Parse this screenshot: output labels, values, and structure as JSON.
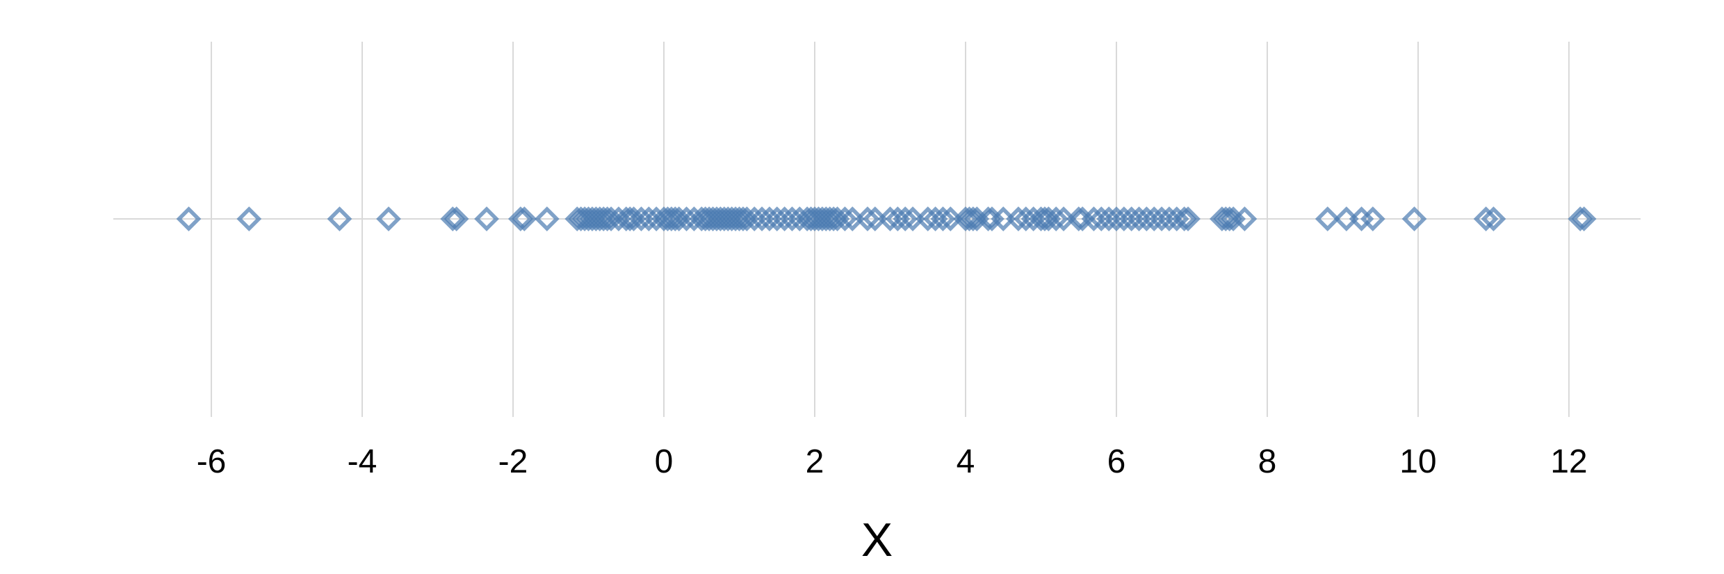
{
  "chart_data": {
    "type": "scatter",
    "title": "",
    "xlabel": "X",
    "ylabel": "",
    "xlim": [
      -7.3,
      12.95
    ],
    "xticks": [
      -6,
      -4,
      -2,
      0,
      2,
      4,
      6,
      8,
      10,
      12
    ],
    "xtick_labels": [
      "-6",
      "-4",
      "-2",
      "0",
      "2",
      "4",
      "6",
      "8",
      "10",
      "12"
    ],
    "grid": true,
    "legend": "none",
    "marker": "diamond-open",
    "point_color": "#4a7bb0",
    "series": [
      {
        "x": [
          -6.3,
          -5.5,
          -4.3,
          -3.65,
          -2.8,
          -2.75,
          -2.35,
          -1.9,
          -1.85,
          -1.55,
          -1.15,
          -1.1,
          -1.05,
          -1.0,
          -0.95,
          -0.9,
          -0.85,
          -0.8,
          -0.75,
          -0.7,
          -0.6,
          -0.5,
          -0.45,
          -0.4,
          -0.3,
          -0.2,
          -0.1,
          0.0,
          0.05,
          0.1,
          0.15,
          0.2,
          0.3,
          0.4,
          0.5,
          0.55,
          0.6,
          0.65,
          0.7,
          0.75,
          0.8,
          0.85,
          0.9,
          0.95,
          1.0,
          1.05,
          1.1,
          1.2,
          1.3,
          1.4,
          1.5,
          1.6,
          1.7,
          1.8,
          1.9,
          1.95,
          2.0,
          2.05,
          2.1,
          2.15,
          2.2,
          2.25,
          2.3,
          2.4,
          2.5,
          2.7,
          2.8,
          3.0,
          3.1,
          3.2,
          3.3,
          3.5,
          3.6,
          3.7,
          3.8,
          4.0,
          4.05,
          4.1,
          4.15,
          4.3,
          4.35,
          4.5,
          4.7,
          4.8,
          4.9,
          5.0,
          5.05,
          5.1,
          5.2,
          5.3,
          5.5,
          5.55,
          5.7,
          5.8,
          5.9,
          6.0,
          6.1,
          6.2,
          6.3,
          6.4,
          6.5,
          6.6,
          6.7,
          6.8,
          6.9,
          6.95,
          7.4,
          7.45,
          7.5,
          7.55,
          7.7,
          8.8,
          9.05,
          9.25,
          9.4,
          9.95,
          10.9,
          11.0,
          12.15,
          12.2
        ]
      }
    ]
  }
}
